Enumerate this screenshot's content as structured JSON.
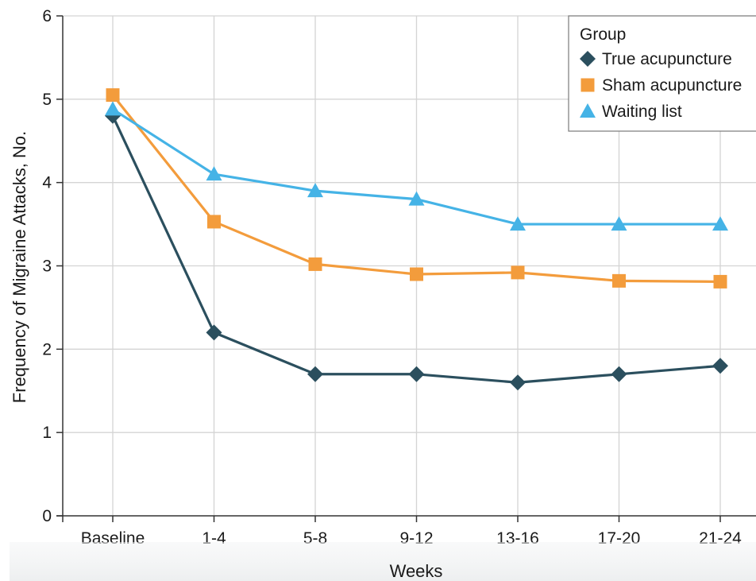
{
  "chart_data": {
    "type": "line",
    "xlabel": "Weeks",
    "ylabel": "Frequency of Migraine Attacks, No.",
    "categories": [
      "Baseline",
      "1-4",
      "5-8",
      "9-12",
      "13-16",
      "17-20",
      "21-24"
    ],
    "ylim": [
      0,
      6
    ],
    "yticks": [
      0,
      1,
      2,
      3,
      4,
      5,
      6
    ],
    "grid": true,
    "legend": {
      "title": "Group",
      "placement": "top-right"
    },
    "series": [
      {
        "name": "True acupuncture",
        "marker": "diamond",
        "color": "#2b4f5e",
        "values": [
          4.8,
          2.2,
          1.7,
          1.7,
          1.6,
          1.7,
          1.8
        ]
      },
      {
        "name": "Sham acupuncture",
        "marker": "square",
        "color": "#f39c3c",
        "values": [
          5.05,
          3.53,
          3.02,
          2.9,
          2.92,
          2.82,
          2.81
        ]
      },
      {
        "name": "Waiting list",
        "marker": "triangle",
        "color": "#45b3e6",
        "values": [
          4.88,
          4.1,
          3.9,
          3.8,
          3.5,
          3.5,
          3.5
        ]
      }
    ]
  }
}
